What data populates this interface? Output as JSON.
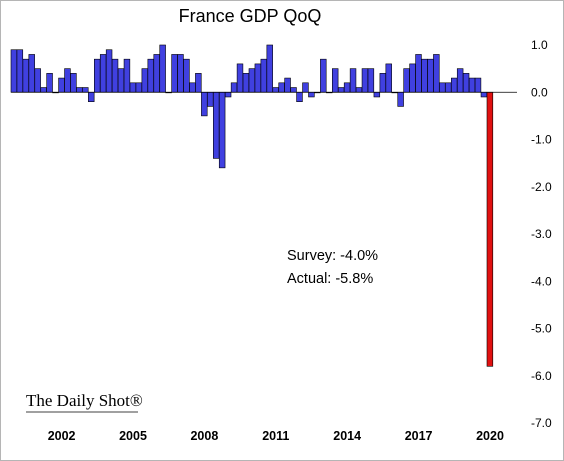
{
  "chart_data": {
    "type": "bar",
    "title": "France GDP QoQ",
    "ylim": [
      -7,
      1
    ],
    "yticks": [
      1,
      0,
      -1,
      -2,
      -3,
      -4,
      -5,
      -6,
      -7
    ],
    "ytick_labels": [
      "1.0",
      "0.0",
      "-1.0",
      "-2.0",
      "-3.0",
      "-4.0",
      "-5.0",
      "-6.0",
      "-7.0"
    ],
    "y_axis_side": "right",
    "xticks": [
      2002,
      2005,
      2008,
      2011,
      2014,
      2017,
      2020
    ],
    "xtick_labels": [
      "2002",
      "2005",
      "2008",
      "2011",
      "2014",
      "2017",
      "2020"
    ],
    "x_start": 2000,
    "quarters_per_year": 4,
    "grid": false,
    "colors": {
      "positive": "#4040e0",
      "latest": "#e01010",
      "border": "#000000"
    },
    "values": [
      0.9,
      0.9,
      0.7,
      0.8,
      0.5,
      0.1,
      0.4,
      0.0,
      0.3,
      0.5,
      0.4,
      0.1,
      0.1,
      -0.2,
      0.7,
      0.8,
      0.9,
      0.7,
      0.5,
      0.7,
      0.2,
      0.2,
      0.5,
      0.7,
      0.8,
      1.0,
      0.0,
      0.8,
      0.8,
      0.7,
      0.2,
      0.4,
      -0.5,
      -0.3,
      -1.4,
      -1.6,
      -0.1,
      0.2,
      0.6,
      0.4,
      0.5,
      0.6,
      0.7,
      1.0,
      0.1,
      0.2,
      0.3,
      0.1,
      -0.2,
      0.2,
      -0.1,
      0.0,
      0.7,
      0.0,
      0.5,
      0.1,
      0.2,
      0.5,
      0.1,
      0.5,
      0.5,
      -0.1,
      0.4,
      0.6,
      0.0,
      -0.3,
      0.5,
      0.6,
      0.8,
      0.7,
      0.7,
      0.8,
      0.2,
      0.2,
      0.3,
      0.5,
      0.4,
      0.3,
      0.3,
      -0.1,
      -5.8
    ],
    "annotations": [
      "Survey: -4.0%",
      "Actual:  -5.8%"
    ]
  },
  "watermark": "The Daily Shot®"
}
